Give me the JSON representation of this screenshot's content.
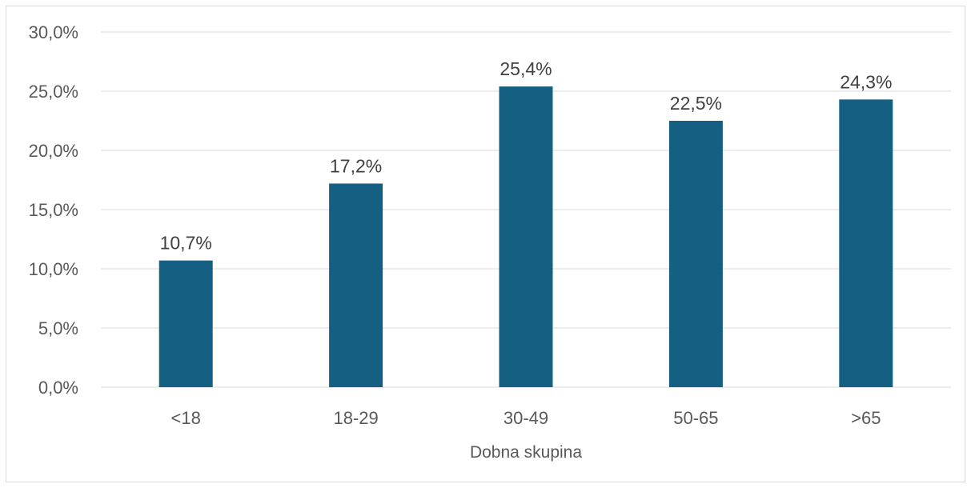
{
  "chart_data": {
    "type": "bar",
    "title": "",
    "xlabel": "Dobna skupina",
    "ylabel": "",
    "categories": [
      "<18",
      "18-29",
      "30-49",
      "50-65",
      ">65"
    ],
    "values": [
      10.7,
      17.2,
      25.4,
      22.5,
      24.3
    ],
    "data_labels": [
      "10,7%",
      "17,2%",
      "25,4%",
      "22,5%",
      "24,3%"
    ],
    "ylim": [
      0,
      30
    ],
    "yticks": [
      0,
      5,
      10,
      15,
      20,
      25,
      30
    ],
    "ytick_labels": [
      "0,0%",
      "5,0%",
      "10,0%",
      "15,0%",
      "20,0%",
      "25,0%",
      "30,0%"
    ],
    "grid": true,
    "legend": "none",
    "bar_color": "#156082",
    "grid_color": "#d9d9d9"
  }
}
